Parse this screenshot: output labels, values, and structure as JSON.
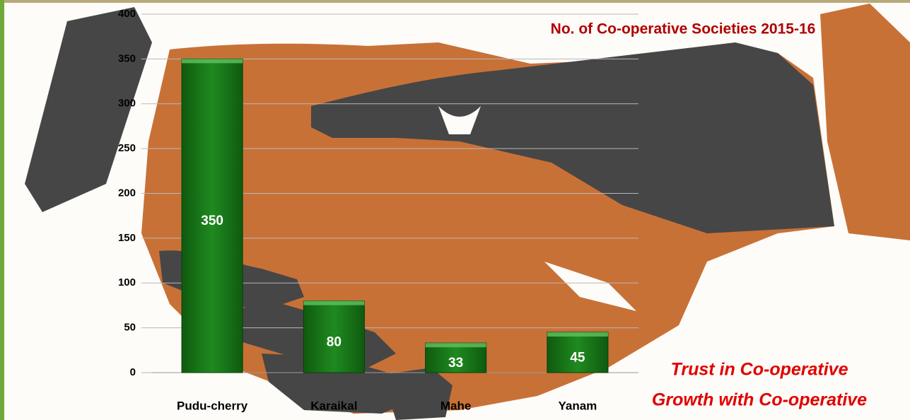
{
  "chart_data": {
    "type": "bar",
    "title": "No. of Co-operative Societies 2015-16",
    "categories": [
      "Pudu-cherry",
      "Karaikal",
      "Mahe",
      "Yanam"
    ],
    "values": [
      350,
      80,
      33,
      45
    ],
    "color": "#1e7a1e",
    "ylim": [
      0,
      400
    ],
    "yticks": [
      0,
      50,
      100,
      150,
      200,
      250,
      300,
      350,
      400
    ],
    "grid": true,
    "annotations": [
      "Trust in Co-operative",
      "Growth with Co-operative"
    ]
  }
}
